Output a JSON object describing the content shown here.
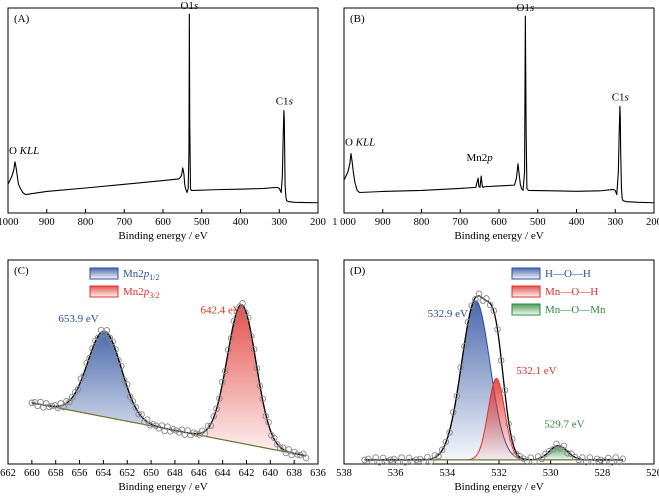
{
  "chart_data": [
    {
      "id": "A",
      "type": "line",
      "panel_label": "(A)",
      "xlabel": "Binding energy / eV",
      "ylabel": "",
      "xlim": [
        1000,
        200
      ],
      "ylim": [
        0,
        100
      ],
      "xticks": [
        1000,
        900,
        800,
        700,
        600,
        500,
        400,
        300,
        200
      ],
      "xtick_labels": [
        "1000",
        "900",
        "800",
        "700",
        "600",
        "500",
        "400",
        "300",
        "200"
      ],
      "color": "#000000",
      "series": [
        {
          "x": [
            1000,
            990,
            985,
            982,
            979,
            976,
            973,
            968,
            962,
            955,
            900,
            800,
            700,
            600,
            560,
            555,
            552,
            549,
            546,
            544,
            542,
            538,
            535,
            533,
            532,
            531,
            529,
            527,
            520,
            460,
            400,
            340,
            305,
            300,
            295,
            292,
            290,
            288,
            287,
            286,
            285,
            283,
            281,
            275,
            260,
            230,
            200
          ],
          "y": [
            14,
            18,
            21,
            25,
            22,
            18,
            14,
            12,
            10,
            9,
            10.5,
            12.2,
            14,
            15.8,
            16.6,
            17.4,
            18.5,
            22,
            19,
            14,
            12,
            10,
            12,
            30,
            97,
            45,
            12,
            11,
            11,
            11.4,
            11.6,
            12,
            12.5,
            12,
            10,
            18,
            36,
            50,
            46,
            30,
            14,
            8,
            6,
            5.5,
            5.2,
            5.1,
            5
          ]
        }
      ],
      "annotations": [
        {
          "text": "O1",
          "italic": "s",
          "x": 532,
          "y": 97
        },
        {
          "text": "C1",
          "italic": "s",
          "x": 287,
          "y": 50
        },
        {
          "text": "O ",
          "italic": "KLL",
          "x": 982,
          "y": 25
        }
      ]
    },
    {
      "id": "B",
      "type": "line",
      "panel_label": "(B)",
      "xlabel": "Binding energy / eV",
      "ylabel": "",
      "xlim": [
        1000,
        200
      ],
      "ylim": [
        0,
        100
      ],
      "xticks": [
        1000,
        900,
        800,
        700,
        600,
        500,
        400,
        300,
        200
      ],
      "xtick_labels": [
        "1 000",
        "900",
        "800",
        "700",
        "600",
        "500",
        "400",
        "300",
        "200"
      ],
      "color": "#000000",
      "series": [
        {
          "x": [
            1000,
            990,
            985,
            982,
            979,
            976,
            972,
            966,
            960,
            900,
            800,
            700,
            660,
            654,
            652,
            649,
            646,
            643,
            641,
            638,
            600,
            560,
            555,
            551,
            548,
            545,
            542,
            538,
            534,
            532,
            530,
            528,
            524,
            460,
            400,
            340,
            305,
            300,
            296,
            292,
            290,
            288,
            287,
            286,
            284,
            282,
            280,
            270,
            240,
            200
          ],
          "y": [
            16,
            20,
            24,
            29,
            25,
            20,
            15,
            11,
            10,
            10.5,
            11,
            12,
            12.5,
            17,
            13,
            12.5,
            18,
            13,
            12.5,
            12.8,
            13.2,
            13.6,
            17,
            24,
            19,
            14,
            12,
            11,
            20,
            96,
            40,
            12,
            11,
            10.8,
            10.6,
            10.8,
            11.5,
            11,
            9,
            20,
            38,
            52,
            47,
            30,
            12,
            7,
            6,
            5.5,
            5.2,
            5
          ]
        }
      ],
      "annotations": [
        {
          "text": "O1",
          "italic": "s",
          "x": 532,
          "y": 96
        },
        {
          "text": "C1",
          "italic": "s",
          "x": 287,
          "y": 52
        },
        {
          "text": "O ",
          "italic": "KLL",
          "x": 982,
          "y": 29
        },
        {
          "text": "Mn2",
          "italic": "p",
          "x": 650,
          "y": 23
        }
      ]
    },
    {
      "id": "C",
      "type": "area",
      "panel_label": "(C)",
      "xlabel": "Binding energy / eV",
      "ylabel": "",
      "xlim": [
        662,
        636
      ],
      "ylim": [
        0,
        100
      ],
      "xticks": [
        662,
        660,
        658,
        656,
        654,
        652,
        650,
        648,
        646,
        644,
        642,
        640,
        638,
        636
      ],
      "legend": {
        "placement": "top-left"
      },
      "series": [
        {
          "name": "Mn2p1/2",
          "label_main": "Mn2",
          "label_italic": "p",
          "label_sub": "1/2",
          "color": "#2b4f9e",
          "center": 653.9,
          "amplitude": 42,
          "width": 1.4
        },
        {
          "name": "Mn2p3/2",
          "label_main": "Mn2",
          "label_italic": "p",
          "label_sub": "3/2",
          "color": "#e0302a",
          "center": 642.4,
          "amplitude": 68,
          "width": 1.2
        }
      ],
      "background": {
        "x0": 660,
        "y0": 30,
        "x1": 637,
        "y1": 4
      },
      "annotations": [
        {
          "text": "653.9 eV",
          "color": "#2b4f9e",
          "x": 653.9
        },
        {
          "text": "642.4 eV",
          "color": "#e0302a",
          "x": 642.4
        }
      ]
    },
    {
      "id": "D",
      "type": "area",
      "panel_label": "(D)",
      "xlabel": "Binding energy / eV",
      "ylabel": "",
      "xlim": [
        538,
        526
      ],
      "ylim": [
        0,
        100
      ],
      "xticks": [
        538,
        536,
        534,
        532,
        530,
        528,
        526
      ],
      "legend": {
        "placement": "top-right"
      },
      "series": [
        {
          "name": "H—O—H",
          "color": "#2b4f9e",
          "center": 532.9,
          "amplitude": 78,
          "width": 0.55
        },
        {
          "name": "Mn—O—H",
          "color": "#e0302a",
          "center": 532.1,
          "amplitude": 40,
          "width": 0.32
        },
        {
          "name": "Mn—O—Mn",
          "color": "#2e8b3a",
          "center": 529.7,
          "amplitude": 7,
          "width": 0.35
        }
      ],
      "background": {
        "x0": 537.2,
        "y0": 2,
        "x1": 527.2,
        "y1": 2
      },
      "annotations": [
        {
          "text": "532.9 eV",
          "color": "#2b4f9e",
          "x": 532.9
        },
        {
          "text": "532.1 eV",
          "color": "#e0302a",
          "x": 532.1
        },
        {
          "text": "529.7 eV",
          "color": "#2e8b3a",
          "x": 529.7
        }
      ]
    }
  ]
}
